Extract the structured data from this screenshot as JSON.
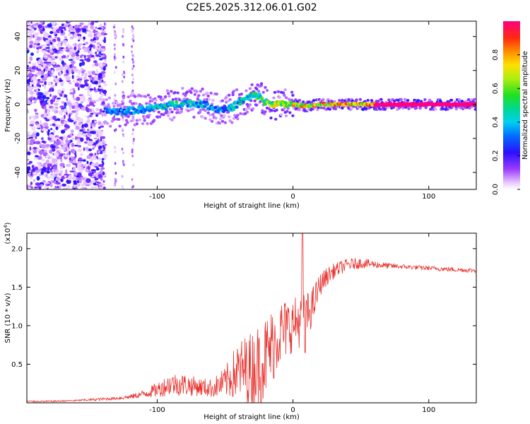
{
  "figure_title": "C2E5.2025.312.06.01.G02",
  "chart_data": [
    {
      "type": "heatmap",
      "title": "C2E5.2025.312.06.01.G02",
      "xlabel": "Height of straight line (km)",
      "ylabel": "Frequency (Hz)",
      "xlim": [
        -196,
        135
      ],
      "ylim": [
        -50,
        49
      ],
      "xticks": [
        -100,
        0,
        100
      ],
      "xtick_labels": [
        "-100",
        "0",
        "100"
      ],
      "yticks": [
        -40,
        -20,
        0,
        20,
        40
      ],
      "ytick_labels": [
        "-40",
        "-20",
        "0",
        "20",
        "40"
      ],
      "colorbar": {
        "label": "Normalized spectral amplitude",
        "range": [
          0,
          1
        ],
        "ticks": [
          0.0,
          0.2,
          0.4,
          0.6,
          0.8
        ],
        "tick_labels": [
          "0.0",
          "0.2",
          "0.4",
          "0.6",
          "0.8"
        ]
      },
      "ridge": {
        "description_points_x": [
          -138,
          -125,
          -110,
          -95,
          -80,
          -65,
          -55,
          -45,
          -38,
          -30,
          -25,
          -20,
          -10,
          0,
          10,
          20,
          40,
          60,
          80,
          100,
          120,
          135
        ],
        "frequency_hz": [
          -4,
          -4,
          -3,
          -1,
          1,
          0,
          -3,
          -2,
          2,
          5,
          5,
          1,
          0,
          0,
          -1,
          0,
          0,
          0,
          0,
          0,
          0,
          0
        ],
        "amplitude": [
          0.35,
          0.4,
          0.45,
          0.5,
          0.5,
          0.45,
          0.4,
          0.45,
          0.5,
          0.55,
          0.6,
          0.7,
          0.8,
          0.85,
          0.85,
          0.9,
          0.95,
          1.0,
          1.0,
          1.0,
          1.0,
          1.0
        ]
      },
      "noise_region_x": [
        -196,
        -138
      ]
    },
    {
      "type": "line",
      "xlabel": "Height of straight line (km)",
      "ylabel": "SNR (10 * v/v)",
      "scale_label": "(x10",
      "scale_exp": "4",
      "scale_close": ")",
      "xlim": [
        -196,
        135
      ],
      "ylim": [
        0,
        2.2
      ],
      "xticks": [
        -100,
        0,
        100
      ],
      "xtick_labels": [
        "-100",
        "0",
        "100"
      ],
      "yticks": [
        0.5,
        1.0,
        1.5,
        2.0
      ],
      "ytick_labels": [
        "0.5",
        "1.0",
        "1.5",
        "2.0"
      ],
      "series": [
        {
          "name": "SNR",
          "color": "#e8322e",
          "x": [
            -196,
            -180,
            -160,
            -140,
            -130,
            -120,
            -110,
            -100,
            -90,
            -80,
            -70,
            -60,
            -50,
            -45,
            -40,
            -30,
            -25,
            -20,
            -15,
            -10,
            -5,
            0,
            5,
            10,
            15,
            20,
            25,
            30,
            40,
            50,
            60,
            70,
            80,
            90,
            100,
            110,
            120,
            135
          ],
          "y": [
            0.02,
            0.02,
            0.03,
            0.05,
            0.06,
            0.08,
            0.12,
            0.18,
            0.26,
            0.25,
            0.22,
            0.2,
            0.28,
            0.38,
            0.45,
            0.5,
            0.55,
            0.65,
            0.8,
            0.95,
            1.0,
            1.05,
            1.1,
            1.15,
            1.3,
            1.55,
            1.65,
            1.72,
            1.8,
            1.82,
            1.8,
            1.78,
            1.77,
            1.76,
            1.75,
            1.74,
            1.73,
            1.72
          ],
          "noise_amplitude": [
            0.01,
            0.01,
            0.01,
            0.02,
            0.02,
            0.03,
            0.05,
            0.1,
            0.15,
            0.15,
            0.12,
            0.12,
            0.2,
            0.3,
            0.4,
            0.5,
            0.55,
            0.55,
            0.5,
            0.45,
            0.4,
            0.35,
            0.35,
            0.3,
            0.25,
            0.15,
            0.12,
            0.1,
            0.08,
            0.07,
            0.05,
            0.04,
            0.03,
            0.03,
            0.03,
            0.03,
            0.03,
            0.03
          ]
        }
      ]
    }
  ],
  "colors": {
    "line": "#e8322e",
    "axis": "#000000"
  }
}
